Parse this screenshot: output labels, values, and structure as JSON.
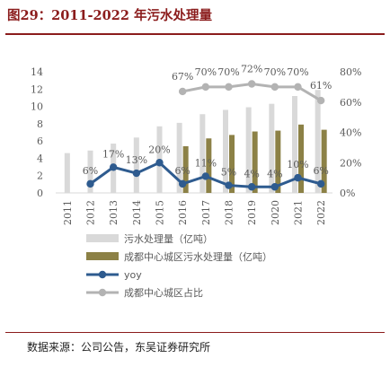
{
  "header": {
    "title": "图29：2011-2022 年污水处理量"
  },
  "footer": {
    "source": "数据来源：公司公告，东吴证券研究所"
  },
  "colors": {
    "title": "#8b1c1c",
    "bar_total": "#d9d9d9",
    "bar_chengdu": "#8c8146",
    "yoy_line": "#2e5b8f",
    "share_line": "#b3b3b3"
  },
  "chart_data": {
    "type": "bar",
    "categories": [
      "2011",
      "2012",
      "2013",
      "2014",
      "2015",
      "2016",
      "2017",
      "2018",
      "2019",
      "2020",
      "2021",
      "2022"
    ],
    "left_axis": {
      "ylim": [
        0,
        14
      ],
      "ticks": [
        "0",
        "2",
        "4",
        "6",
        "8",
        "10",
        "12",
        "14"
      ]
    },
    "right_axis": {
      "ylim": [
        0,
        80
      ],
      "ticks": [
        "0%",
        "20%",
        "40%",
        "60%",
        "80%"
      ]
    },
    "series": [
      {
        "name": "污水处理量（亿吨）",
        "kind": "bar",
        "axis": "left",
        "values": [
          4.6,
          4.9,
          5.7,
          6.4,
          7.7,
          8.1,
          9.1,
          9.6,
          9.9,
          10.3,
          11.2,
          11.9
        ]
      },
      {
        "name": "成都中心城区污水处理量（亿吨）",
        "kind": "bar",
        "axis": "left",
        "values": [
          null,
          null,
          null,
          null,
          null,
          5.4,
          6.3,
          6.7,
          7.1,
          7.2,
          7.9,
          7.3
        ]
      },
      {
        "name": "yoy",
        "kind": "line",
        "axis": "right",
        "values": [
          null,
          6,
          17,
          13,
          20,
          6,
          11,
          5,
          4,
          4,
          10,
          6
        ],
        "labels": [
          null,
          "6%",
          "17%",
          "13%",
          "20%",
          "6%",
          "11%",
          "5%",
          "4%",
          "4%",
          "10%",
          "6%"
        ]
      },
      {
        "name": "成都中心城区占比",
        "kind": "line",
        "axis": "right",
        "values": [
          null,
          null,
          null,
          null,
          null,
          67,
          70,
          70,
          72,
          70,
          70,
          61
        ],
        "labels": [
          null,
          null,
          null,
          null,
          null,
          "67%",
          "70%",
          "70%",
          "72%",
          "70%",
          "70%",
          "61%"
        ]
      }
    ],
    "grid": false,
    "legend_position": "bottom"
  }
}
